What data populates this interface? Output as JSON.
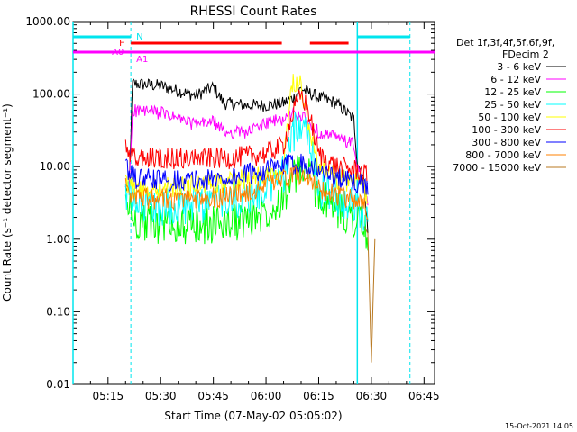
{
  "chart_data": {
    "type": "line",
    "title": "RHESSI Count Rates",
    "xlabel": "Start Time (07-May-02 05:05:02)",
    "ylabel": "Count Rate (s⁻¹ detector segment⁻¹)",
    "x_tick_labels": [
      "05:15",
      "05:30",
      "05:45",
      "06:00",
      "06:15",
      "06:30",
      "06:45"
    ],
    "y_tick_labels": [
      "1000.00",
      "100.00",
      "10.00",
      "1.00",
      "0.10",
      "0.01"
    ],
    "y_scale": "log",
    "ylim": [
      0.01,
      1000
    ],
    "xlim": [
      "05:05:02",
      "06:48:00"
    ],
    "timestamp": "15-Oct-2021 14:05",
    "legend": {
      "header": [
        "Det 1f,3f,4f,5f,6f,9f,",
        "FDecim 2"
      ],
      "placement": "right"
    },
    "series": [
      {
        "name": "3 - 6 keV",
        "color": "#000000",
        "x": [
          "05:20",
          "05:21",
          "05:22",
          "05:30",
          "05:40",
          "05:45",
          "05:48",
          "05:55",
          "06:00",
          "06:05",
          "06:08",
          "06:10",
          "06:12",
          "06:15",
          "06:20",
          "06:25",
          "06:26",
          "06:28",
          "06:29"
        ],
        "values": [
          5,
          5,
          140,
          130,
          95,
          125,
          75,
          70,
          70,
          75,
          90,
          120,
          105,
          90,
          75,
          45,
          12,
          6,
          1.2
        ]
      },
      {
        "name": "6 - 12 keV",
        "color": "#ff00ff",
        "x": [
          "05:20",
          "05:21",
          "05:22",
          "05:30",
          "05:40",
          "05:45",
          "05:48",
          "05:55",
          "06:00",
          "06:05",
          "06:08",
          "06:10",
          "06:12",
          "06:15",
          "06:20",
          "06:25",
          "06:26",
          "06:28",
          "06:29"
        ],
        "values": [
          5,
          5,
          60,
          55,
          38,
          42,
          30,
          30,
          40,
          45,
          55,
          50,
          40,
          30,
          25,
          20,
          10,
          5,
          3
        ]
      },
      {
        "name": "12 - 25 keV",
        "color": "#00ff00",
        "x": [
          "05:20",
          "05:21",
          "05:22",
          "05:30",
          "05:40",
          "05:50",
          "05:55",
          "06:00",
          "06:05",
          "06:08",
          "06:10",
          "06:12",
          "06:15",
          "06:20",
          "06:25",
          "06:26",
          "06:28",
          "06:29"
        ],
        "values": [
          3,
          3,
          1.8,
          1.6,
          1.5,
          1.7,
          1.9,
          2.5,
          4,
          7,
          9,
          9,
          4,
          2.5,
          2,
          2,
          1.5,
          0.6
        ]
      },
      {
        "name": "25 - 50 keV",
        "color": "#00ffff",
        "x": [
          "05:20",
          "05:21",
          "05:22",
          "05:30",
          "05:40",
          "05:50",
          "05:55",
          "06:00",
          "06:05",
          "06:08",
          "06:10",
          "06:12",
          "06:15",
          "06:20",
          "06:25",
          "06:26",
          "06:28",
          "06:29"
        ],
        "values": [
          4,
          4,
          2.8,
          2.8,
          3,
          3.5,
          4,
          5,
          8,
          30,
          45,
          35,
          5,
          4,
          3,
          2.5,
          2,
          1.5
        ]
      },
      {
        "name": "50 - 100 keV",
        "color": "#ffff00",
        "x": [
          "05:20",
          "05:21",
          "05:22",
          "05:30",
          "05:40",
          "05:50",
          "05:55",
          "06:00",
          "06:05",
          "06:07",
          "06:08",
          "06:10",
          "06:12",
          "06:15",
          "06:20",
          "06:25",
          "06:26",
          "06:28",
          "06:29"
        ],
        "values": [
          6,
          6,
          5,
          5,
          5.5,
          6,
          7,
          8,
          10,
          120,
          150,
          140,
          40,
          10,
          7,
          6,
          6,
          5,
          4
        ]
      },
      {
        "name": "100 - 300 keV",
        "color": "#ff0000",
        "x": [
          "05:20",
          "05:21",
          "05:22",
          "05:30",
          "05:40",
          "05:50",
          "05:55",
          "06:00",
          "06:05",
          "06:08",
          "06:10",
          "06:12",
          "06:15",
          "06:20",
          "06:25",
          "06:26",
          "06:28",
          "06:29"
        ],
        "values": [
          18,
          15,
          13,
          13,
          13,
          13,
          14,
          15,
          20,
          60,
          100,
          60,
          15,
          10,
          9,
          9,
          8,
          7
        ]
      },
      {
        "name": "300 - 800 keV",
        "color": "#0000ff",
        "x": [
          "05:20",
          "05:21",
          "05:22",
          "05:30",
          "05:40",
          "05:50",
          "05:55",
          "06:00",
          "06:05",
          "06:08",
          "06:10",
          "06:12",
          "06:15",
          "06:20",
          "06:25",
          "06:26",
          "06:28",
          "06:29"
        ],
        "values": [
          9,
          9,
          7,
          6.5,
          6.5,
          7,
          8,
          9,
          10,
          11,
          11.5,
          11,
          9,
          7,
          6,
          6,
          5.5,
          5
        ]
      },
      {
        "name": "800 - 7000 keV",
        "color": "#ff8000",
        "x": [
          "05:20",
          "05:21",
          "05:22",
          "05:30",
          "05:40",
          "05:50",
          "05:55",
          "06:00",
          "06:05",
          "06:08",
          "06:10",
          "06:12",
          "06:15",
          "06:20",
          "06:25",
          "06:26",
          "06:28",
          "06:29"
        ],
        "values": [
          5,
          5,
          3.8,
          3.6,
          3.6,
          4,
          4.5,
          5.5,
          6.5,
          7.5,
          7.5,
          7,
          5,
          4,
          3.5,
          3.2,
          3,
          2.5
        ]
      },
      {
        "name": "7000 - 15000 keV",
        "color": "#b87820",
        "x": [
          "06:28",
          "06:29",
          "06:30",
          "06:31"
        ],
        "values": [
          1.5,
          1.2,
          0.02,
          1.0
        ]
      }
    ],
    "annotations": {
      "attenuator_labels": [
        "N",
        "F",
        "A0",
        "A1"
      ],
      "vertical_lines_solid": [
        "05:05:02",
        "06:26:00"
      ],
      "vertical_lines_dashed": [
        "05:21:30",
        "06:41:00"
      ],
      "bars": [
        {
          "label": "N",
          "color": "#00e5ee",
          "segments": [
            [
              "05:05:02",
              "05:21:30"
            ],
            [
              "06:26:00",
              "06:41:00"
            ]
          ]
        },
        {
          "label": "A1",
          "color": "#ff00ff",
          "segments": [
            [
              "05:05:02",
              "06:48:00"
            ]
          ]
        },
        {
          "label": "F",
          "color": "#ff0000",
          "segments": [
            [
              "05:21:30",
              "06:04:30"
            ],
            [
              "06:12:30",
              "06:23:30"
            ]
          ]
        }
      ]
    },
    "grid": false
  }
}
